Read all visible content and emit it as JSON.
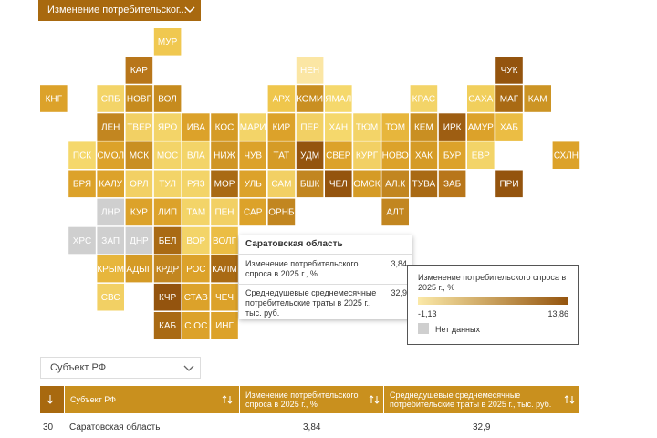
{
  "dropdown": {
    "label": "Изменение потребительског..."
  },
  "map": {
    "tiles": [
      {
        "label": "МУР",
        "color": "#f0c850"
      },
      {
        "label": "КАР",
        "color": "#b8761a"
      },
      {
        "label": "НЕН",
        "color": "#fbe6a4"
      },
      {
        "label": "ЧУК",
        "color": "#94540e"
      },
      {
        "label": "КНГ",
        "color": "#dca22a"
      },
      {
        "label": "СПБ",
        "color": "#f3d468"
      },
      {
        "label": "НОВГ",
        "color": "#c68b1e"
      },
      {
        "label": "ВОЛ",
        "color": "#c68b1e"
      },
      {
        "label": "АРХ",
        "color": "#efc64c"
      },
      {
        "label": "КОМИ",
        "color": "#c98f22"
      },
      {
        "label": "ЯМАЛ",
        "color": "#f5d86c"
      },
      {
        "label": "КРАС",
        "color": "#f3d468"
      },
      {
        "label": "САХА",
        "color": "#f1cf5c"
      },
      {
        "label": "МАГ",
        "color": "#a96a14"
      },
      {
        "label": "КАМ",
        "color": "#cc9424"
      },
      {
        "label": "ЛЕН",
        "color": "#c28620"
      },
      {
        "label": "ТВЕР",
        "color": "#f2d064"
      },
      {
        "label": "ЯРО",
        "color": "#f3d468"
      },
      {
        "label": "ИВА",
        "color": "#dca22a"
      },
      {
        "label": "КОС",
        "color": "#d59b26"
      },
      {
        "label": "МАРИ",
        "color": "#f3d468"
      },
      {
        "label": "КИР",
        "color": "#dca22a"
      },
      {
        "label": "ПЕР",
        "color": "#f2d064"
      },
      {
        "label": "ХАН",
        "color": "#f5d86c"
      },
      {
        "label": "ТЮМ",
        "color": "#f3d468"
      },
      {
        "label": "ТОМ",
        "color": "#e7b63c"
      },
      {
        "label": "КЕМ",
        "color": "#c98f22"
      },
      {
        "label": "ИРК",
        "color": "#9e5e12"
      },
      {
        "label": "АМУР",
        "color": "#dca22a"
      },
      {
        "label": "ХАБ",
        "color": "#ebbd44"
      },
      {
        "label": "ПСК",
        "color": "#f5d86c"
      },
      {
        "label": "СМОЛ",
        "color": "#dca22a"
      },
      {
        "label": "МСК",
        "color": "#c98f22"
      },
      {
        "label": "МОС",
        "color": "#f3d468"
      },
      {
        "label": "ВЛА",
        "color": "#f3d468"
      },
      {
        "label": "НИЖ",
        "color": "#d09626"
      },
      {
        "label": "ЧУВ",
        "color": "#dca22a"
      },
      {
        "label": "ТАТ",
        "color": "#d59b26"
      },
      {
        "label": "УДМ",
        "color": "#94540e"
      },
      {
        "label": "СВЕР",
        "color": "#dca22a"
      },
      {
        "label": "КУРГ",
        "color": "#f2d064"
      },
      {
        "label": "НОВО",
        "color": "#dca22a"
      },
      {
        "label": "ХАК",
        "color": "#d59b26"
      },
      {
        "label": "БУР",
        "color": "#dca22a"
      },
      {
        "label": "ЕВР",
        "color": "#f3d468"
      },
      {
        "label": "СХЛН",
        "color": "#dca22a"
      },
      {
        "label": "БРЯ",
        "color": "#dca22a"
      },
      {
        "label": "КАЛУ",
        "color": "#dca22a"
      },
      {
        "label": "ОРЛ",
        "color": "#f2d064"
      },
      {
        "label": "ТУЛ",
        "color": "#f3d468"
      },
      {
        "label": "РЯЗ",
        "color": "#f3d468"
      },
      {
        "label": "МОР",
        "color": "#a96a14"
      },
      {
        "label": "УЛЬ",
        "color": "#dca22a"
      },
      {
        "label": "САМ",
        "color": "#f2d064"
      },
      {
        "label": "БШК",
        "color": "#c28620"
      },
      {
        "label": "ЧЕЛ",
        "color": "#94540e"
      },
      {
        "label": "ОМСК",
        "color": "#d59b26"
      },
      {
        "label": "АЛ.К",
        "color": "#c28620"
      },
      {
        "label": "ТУВА",
        "color": "#a96a14"
      },
      {
        "label": "ЗАБ",
        "color": "#b8761a"
      },
      {
        "label": "ПРИ",
        "color": "#94540e"
      },
      {
        "label": "ЛНР",
        "color": "#cfcfcf"
      },
      {
        "label": "КУР",
        "color": "#dca22a"
      },
      {
        "label": "ЛИП",
        "color": "#dca22a"
      },
      {
        "label": "ТАМ",
        "color": "#f3d468"
      },
      {
        "label": "ПЕН",
        "color": "#f2d064"
      },
      {
        "label": "САР",
        "color": "#dca22a"
      },
      {
        "label": "ОРНБ",
        "color": "#c28620"
      },
      {
        "label": "АЛТ",
        "color": "#c28620"
      },
      {
        "label": "ХРС",
        "color": "#cfcfcf"
      },
      {
        "label": "ЗАП",
        "color": "#cfcfcf"
      },
      {
        "label": "ДНР",
        "color": "#cfcfcf"
      },
      {
        "label": "БЕЛ",
        "color": "#a96a14"
      },
      {
        "label": "ВОР",
        "color": "#f3d468"
      },
      {
        "label": "ВОЛГ",
        "color": "#ebbd44"
      },
      {
        "label": "КРЫМ",
        "color": "#e7b63c"
      },
      {
        "label": "АДЫГ",
        "color": "#d59b26"
      },
      {
        "label": "КРДР",
        "color": "#c28620"
      },
      {
        "label": "РОС",
        "color": "#dca22a"
      },
      {
        "label": "КАЛМ",
        "color": "#a96a14"
      },
      {
        "label": "СВС",
        "color": "#f2d064"
      },
      {
        "label": "КЧР",
        "color": "#94540e"
      },
      {
        "label": "СТАВ",
        "color": "#dca22a"
      },
      {
        "label": "ЧЕЧ",
        "color": "#dca22a"
      },
      {
        "label": "КАБ",
        "color": "#a96a14"
      },
      {
        "label": "С.ОС",
        "color": "#dca22a"
      },
      {
        "label": "ИНГ",
        "color": "#dca22a"
      }
    ]
  },
  "tooltip": {
    "title": "Саратовская область",
    "rows": [
      {
        "label": "Изменение потребительского спроса в 2025 г., %",
        "value": "3,84"
      },
      {
        "label": "Среднедушевые среднемесячные потребительские траты в 2025 г., тыс. руб.",
        "value": "32,9"
      }
    ]
  },
  "legend": {
    "title": "Изменение потребительского спроса в 2025 г., %",
    "min": "-1,13",
    "max": "13,86",
    "no_data": "Нет данных"
  },
  "filter": {
    "label": "Субъект РФ"
  },
  "table": {
    "headers": [
      "Субъект РФ",
      "Изменение потребительского спроса в 2025 г., %",
      "Среднедушевые среднемесячные потребительские траты в 2025 г., тыс. руб."
    ],
    "rows": [
      [
        "30",
        "Саратовская область",
        "3,84",
        "32,9"
      ]
    ]
  }
}
